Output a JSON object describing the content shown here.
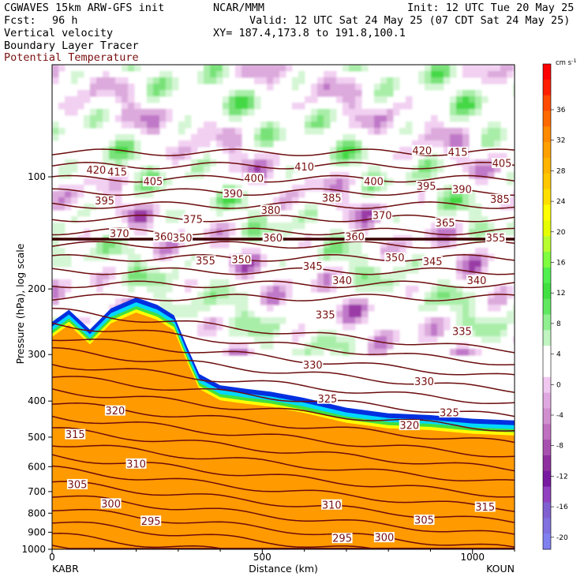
{
  "header": {
    "model": "CGWAVES 15km ARW-GFS init",
    "org": "NCAR/MMM",
    "init": "Init: 12 UTC Tue 20 May 25",
    "fcst_label": "Fcst:",
    "fcst_value": "96 h",
    "valid": "Valid: 12 UTC Sat 24 May 25 (07 CDT Sat 24 May 25)",
    "field1": "Vertical velocity",
    "field2": "Boundary Layer Tracer",
    "field3": "Potential Temperature",
    "xy": "XY= 187.4,173.8 to 191.8,100.1"
  },
  "colors": {
    "theta_line": "#6b0c0c",
    "theta_label": "#7a1010",
    "tracer": "#ff9a00"
  },
  "chart_data": {
    "type": "heatmap",
    "xlabel": "Distance (km)",
    "ylabel": "Pressure (hPa), log scale",
    "xlim": [
      0,
      1100
    ],
    "ylim": [
      1000,
      50
    ],
    "x_ticks": [
      "0",
      "500",
      "1000"
    ],
    "y_ticks": [
      "100",
      "200",
      "300",
      "400",
      "500",
      "600",
      "700",
      "800",
      "900",
      "1000"
    ],
    "left_station": "KABR",
    "right_station": "KOUN",
    "colorbar": {
      "unit": "cm s",
      "unit_exp": "-1",
      "labels": [
        "36",
        "32",
        "28",
        "24",
        "20",
        "16",
        "12",
        "8",
        "4",
        "0",
        "-4",
        "-8",
        "-12",
        "-16",
        "-20"
      ],
      "colors": [
        "#ff0000",
        "#ff2000",
        "#ff4a00",
        "#ff6a00",
        "#ff8a00",
        "#ffa000",
        "#ffb400",
        "#ffc800",
        "#ffe000",
        "#ffff00",
        "#e6ff00",
        "#b8ff30",
        "#80ff40",
        "#50f050",
        "#40e040",
        "#60e860",
        "#90f090",
        "#c0f4c0",
        "#ffffff",
        "#ffffff",
        "#f0c8f0",
        "#e0a8e0",
        "#d090d0",
        "#c070c0",
        "#a850b0",
        "#9030a0",
        "#7818a0",
        "#9040c0",
        "#8060d0",
        "#8070e0",
        "#8080f0"
      ]
    },
    "theta_labels": [
      {
        "text": "420",
        "x": 105,
        "p": 96
      },
      {
        "text": "415",
        "x": 155,
        "p": 97
      },
      {
        "text": "405",
        "x": 240,
        "p": 103
      },
      {
        "text": "400",
        "x": 480,
        "p": 101
      },
      {
        "text": "410",
        "x": 600,
        "p": 94
      },
      {
        "text": "420",
        "x": 880,
        "p": 85
      },
      {
        "text": "415",
        "x": 965,
        "p": 86
      },
      {
        "text": "405",
        "x": 1070,
        "p": 92
      },
      {
        "text": "395",
        "x": 125,
        "p": 116
      },
      {
        "text": "390",
        "x": 430,
        "p": 111
      },
      {
        "text": "385",
        "x": 665,
        "p": 114
      },
      {
        "text": "400",
        "x": 765,
        "p": 103
      },
      {
        "text": "395",
        "x": 890,
        "p": 106
      },
      {
        "text": "390",
        "x": 975,
        "p": 108
      },
      {
        "text": "385",
        "x": 1065,
        "p": 115
      },
      {
        "text": "375",
        "x": 335,
        "p": 130
      },
      {
        "text": "380",
        "x": 520,
        "p": 123
      },
      {
        "text": "370",
        "x": 785,
        "p": 127
      },
      {
        "text": "365",
        "x": 935,
        "p": 133
      },
      {
        "text": "370",
        "x": 160,
        "p": 142
      },
      {
        "text": "360",
        "x": 265,
        "p": 145
      },
      {
        "text": "350",
        "x": 310,
        "p": 146
      },
      {
        "text": "360",
        "x": 525,
        "p": 146
      },
      {
        "text": "360",
        "x": 720,
        "p": 145
      },
      {
        "text": "355",
        "x": 1055,
        "p": 146
      },
      {
        "text": "355",
        "x": 365,
        "p": 168
      },
      {
        "text": "350",
        "x": 450,
        "p": 167
      },
      {
        "text": "345",
        "x": 620,
        "p": 174
      },
      {
        "text": "350",
        "x": 815,
        "p": 165
      },
      {
        "text": "345",
        "x": 905,
        "p": 169
      },
      {
        "text": "340",
        "x": 690,
        "p": 190
      },
      {
        "text": "340",
        "x": 1010,
        "p": 190
      },
      {
        "text": "335",
        "x": 650,
        "p": 235
      },
      {
        "text": "335",
        "x": 975,
        "p": 260
      },
      {
        "text": "330",
        "x": 620,
        "p": 320
      },
      {
        "text": "330",
        "x": 885,
        "p": 355
      },
      {
        "text": "325",
        "x": 655,
        "p": 395
      },
      {
        "text": "325",
        "x": 945,
        "p": 430
      },
      {
        "text": "320",
        "x": 150,
        "p": 425
      },
      {
        "text": "320",
        "x": 850,
        "p": 465
      },
      {
        "text": "315",
        "x": 55,
        "p": 492
      },
      {
        "text": "310",
        "x": 200,
        "p": 590
      },
      {
        "text": "305",
        "x": 60,
        "p": 670
      },
      {
        "text": "300",
        "x": 140,
        "p": 755
      },
      {
        "text": "295",
        "x": 235,
        "p": 840
      },
      {
        "text": "310",
        "x": 665,
        "p": 760
      },
      {
        "text": "305",
        "x": 885,
        "p": 835
      },
      {
        "text": "315",
        "x": 1030,
        "p": 770
      },
      {
        "text": "295",
        "x": 690,
        "p": 935
      },
      {
        "text": "300",
        "x": 790,
        "p": 930
      }
    ]
  }
}
